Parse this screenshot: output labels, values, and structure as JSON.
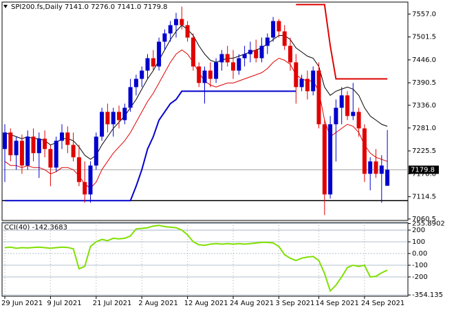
{
  "chart_data": [
    {
      "type": "candlestick",
      "title": "SPI200.fs,Daily  7141.0 7276.0 7141.0 7179.8",
      "categories": [
        "29 Jun 2021",
        null,
        null,
        null,
        null,
        null,
        null,
        null,
        "9 Jul 2021",
        null,
        null,
        null,
        null,
        null,
        null,
        null,
        "21 Jul 2021",
        null,
        null,
        null,
        null,
        null,
        null,
        null,
        "2 Aug 2021",
        null,
        null,
        null,
        null,
        null,
        null,
        null,
        "12 Aug 2021",
        null,
        null,
        null,
        null,
        null,
        null,
        null,
        "24 Aug 2021",
        null,
        null,
        null,
        null,
        null,
        null,
        null,
        "3 Sep 2021",
        null,
        null,
        null,
        null,
        null,
        null,
        "14 Sep 2021",
        null,
        null,
        null,
        null,
        null,
        null,
        null,
        "24 Sep 2021",
        null,
        null,
        null,
        null
      ],
      "open": [
        7230,
        7270,
        7215,
        7250,
        7190,
        7260,
        7220,
        7255,
        7230,
        7185,
        7250,
        7270,
        7240,
        7210,
        7150,
        7120,
        7190,
        7260,
        7320,
        7290,
        7320,
        7300,
        7330,
        7380,
        7400,
        7420,
        7450,
        7430,
        7490,
        7510,
        7530,
        7545,
        7530,
        7500,
        7430,
        7390,
        7420,
        7400,
        7440,
        7460,
        7440,
        7420,
        7450,
        7460,
        7470,
        7450,
        7480,
        7500,
        7540,
        7515,
        7480,
        7440,
        7380,
        7400,
        7370,
        7420,
        7290,
        7120,
        7290,
        7330,
        7360,
        7310,
        7320,
        7280,
        7170,
        7200,
        7170,
        7141
      ],
      "high": [
        7290,
        7280,
        7260,
        7265,
        7275,
        7280,
        7270,
        7275,
        7240,
        7260,
        7290,
        7285,
        7270,
        7240,
        7200,
        7200,
        7270,
        7330,
        7340,
        7330,
        7335,
        7340,
        7400,
        7410,
        7430,
        7460,
        7470,
        7500,
        7520,
        7540,
        7560,
        7575,
        7540,
        7510,
        7440,
        7430,
        7440,
        7450,
        7470,
        7480,
        7470,
        7460,
        7480,
        7490,
        7495,
        7500,
        7510,
        7550,
        7545,
        7530,
        7500,
        7460,
        7410,
        7420,
        7430,
        7440,
        7300,
        7310,
        7350,
        7380,
        7370,
        7390,
        7330,
        7290,
        7210,
        7230,
        7215,
        7276
      ],
      "low": [
        7150,
        7200,
        7180,
        7170,
        7180,
        7200,
        7160,
        7210,
        7140,
        7175,
        7230,
        7220,
        7200,
        7140,
        7100,
        7100,
        7180,
        7250,
        7270,
        7260,
        7280,
        7290,
        7320,
        7360,
        7380,
        7400,
        7420,
        7420,
        7470,
        7490,
        7500,
        7520,
        7490,
        7420,
        7380,
        7340,
        7380,
        7390,
        7420,
        7430,
        7400,
        7410,
        7430,
        7440,
        7440,
        7440,
        7460,
        7490,
        7500,
        7470,
        7420,
        7340,
        7370,
        7350,
        7360,
        7280,
        7070,
        7110,
        7200,
        7290,
        7300,
        7300,
        7260,
        7150,
        7130,
        7160,
        7100,
        7141
      ],
      "close": [
        7270,
        7215,
        7250,
        7190,
        7260,
        7220,
        7255,
        7230,
        7185,
        7250,
        7270,
        7240,
        7210,
        7150,
        7120,
        7190,
        7260,
        7320,
        7290,
        7320,
        7300,
        7330,
        7380,
        7400,
        7420,
        7450,
        7430,
        7490,
        7510,
        7530,
        7545,
        7530,
        7500,
        7430,
        7390,
        7420,
        7400,
        7440,
        7460,
        7440,
        7420,
        7450,
        7460,
        7470,
        7450,
        7480,
        7500,
        7540,
        7515,
        7480,
        7440,
        7380,
        7400,
        7370,
        7420,
        7290,
        7120,
        7290,
        7330,
        7360,
        7310,
        7320,
        7280,
        7170,
        7200,
        7170,
        7190,
        7179.8
      ],
      "up_color": "#0000cd",
      "down_color": "#e00000",
      "lines": [
        {
          "color": "#000000",
          "weight": "thin",
          "values": [
            7270,
            7265,
            7260,
            7255,
            7260,
            7255,
            7255,
            7250,
            7240,
            7245,
            7255,
            7255,
            7250,
            7235,
            7215,
            7205,
            7215,
            7240,
            7260,
            7280,
            7295,
            7310,
            7330,
            7350,
            7375,
            7400,
            7420,
            7445,
            7470,
            7495,
            7515,
            7530,
            7520,
            7505,
            7480,
            7460,
            7445,
            7440,
            7445,
            7450,
            7450,
            7455,
            7460,
            7465,
            7470,
            7475,
            7485,
            7495,
            7505,
            7505,
            7495,
            7475,
            7465,
            7455,
            7450,
            7430,
            7380,
            7360,
            7370,
            7375,
            7380,
            7375,
            7360,
            7330,
            7310,
            7300,
            7290,
            7285
          ]
        },
        {
          "color": "#e00000",
          "weight": "thin",
          "values": [
            7200,
            7190,
            7190,
            7185,
            7190,
            7185,
            7185,
            7180,
            7170,
            7175,
            7185,
            7185,
            7180,
            7165,
            7145,
            7135,
            7150,
            7180,
            7200,
            7220,
            7235,
            7250,
            7270,
            7295,
            7320,
            7345,
            7365,
            7390,
            7415,
            7440,
            7460,
            7470,
            7460,
            7440,
            7415,
            7395,
            7385,
            7380,
            7385,
            7390,
            7390,
            7395,
            7400,
            7405,
            7410,
            7415,
            7425,
            7440,
            7450,
            7445,
            7435,
            7410,
            7400,
            7395,
            7395,
            7370,
            7300,
            7260,
            7270,
            7280,
            7290,
            7285,
            7270,
            7240,
            7220,
            7210,
            7205,
            7200
          ]
        },
        {
          "color": "#0000cc",
          "weight": "thick",
          "values": [
            7105,
            7105,
            7105,
            7105,
            7105,
            7105,
            7105,
            7105,
            7105,
            7105,
            7105,
            7105,
            7105,
            7105,
            7105,
            7105,
            7105,
            7105,
            7105,
            7105,
            7105,
            7105,
            7105,
            7140,
            7180,
            7230,
            7260,
            7300,
            7320,
            7340,
            7350,
            7370,
            7370,
            7370,
            7370,
            7370,
            7370,
            7370,
            7370,
            7370,
            7370,
            7370,
            7370,
            7370,
            7370,
            7370,
            7370,
            7370,
            7370,
            7370,
            7370,
            7370,
            null,
            null,
            null,
            null,
            null,
            null,
            null,
            null,
            null,
            null,
            null,
            null,
            null,
            null,
            null,
            null
          ]
        },
        {
          "color": "#e00000",
          "weight": "thick",
          "values": [
            null,
            null,
            null,
            null,
            null,
            null,
            null,
            null,
            null,
            null,
            null,
            null,
            null,
            null,
            null,
            null,
            null,
            null,
            null,
            null,
            null,
            null,
            null,
            null,
            null,
            null,
            null,
            null,
            null,
            null,
            null,
            null,
            null,
            null,
            null,
            null,
            null,
            null,
            null,
            null,
            null,
            null,
            null,
            null,
            null,
            null,
            null,
            null,
            null,
            null,
            null,
            7580,
            7580,
            7580,
            7580,
            7580,
            7580,
            7480,
            7400,
            7400,
            7400,
            7400,
            7400,
            7400,
            7400,
            7400,
            7400,
            7400
          ]
        }
      ],
      "hline": 7105,
      "price_line": 7179.8,
      "ylim": [
        7057,
        7586
      ],
      "yticks": [
        {
          "value": 7557,
          "label": "7557.0"
        },
        7501.5,
        {
          "value": 7446,
          "label": "7446.0"
        },
        7390.5,
        {
          "value": 7336,
          "label": "7336.0"
        },
        {
          "value": 7281,
          "label": "7281.0"
        },
        7225.5,
        {
          "value": 7170,
          "label": "7170.0"
        },
        7114.5,
        7060.5
      ]
    },
    {
      "type": "line",
      "title": "CCI(40) -142.3683",
      "color": "#7fe000",
      "values": [
        50,
        55,
        45,
        50,
        48,
        52,
        55,
        50,
        45,
        50,
        55,
        52,
        40,
        -130,
        -110,
        60,
        100,
        120,
        110,
        130,
        125,
        130,
        150,
        210,
        215,
        220,
        235,
        240,
        230,
        225,
        220,
        200,
        160,
        100,
        75,
        70,
        80,
        85,
        80,
        85,
        80,
        85,
        80,
        85,
        90,
        95,
        95,
        90,
        60,
        -10,
        -40,
        -60,
        -40,
        -30,
        -25,
        -60,
        -170,
        -320,
        -270,
        -200,
        -120,
        -100,
        -110,
        -100,
        -200,
        -195,
        -165,
        -142.3683
      ],
      "ylim": [
        -365,
        265
      ],
      "yticks": [
        255.8902,
        200,
        100,
        {
          "value": 0,
          "label": "0.00"
        },
        -100,
        -200,
        -354.135
      ]
    }
  ]
}
